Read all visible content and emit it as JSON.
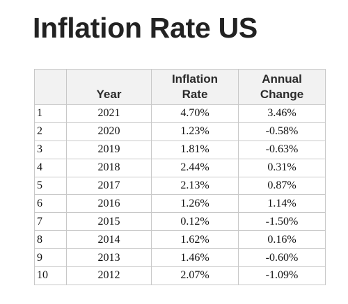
{
  "title": "Inflation Rate US",
  "table": {
    "headers": {
      "index": "",
      "year": "Year",
      "rate_line1": "Inflation",
      "rate_line2": "Rate",
      "change_line1": "Annual",
      "change_line2": "Change"
    },
    "rows": [
      {
        "index": "1",
        "year": "2021",
        "rate": "4.70%",
        "change": "3.46%"
      },
      {
        "index": "2",
        "year": "2020",
        "rate": "1.23%",
        "change": "-0.58%"
      },
      {
        "index": "3",
        "year": "2019",
        "rate": "1.81%",
        "change": "-0.63%"
      },
      {
        "index": "4",
        "year": "2018",
        "rate": "2.44%",
        "change": "0.31%"
      },
      {
        "index": "5",
        "year": "2017",
        "rate": "2.13%",
        "change": "0.87%"
      },
      {
        "index": "6",
        "year": "2016",
        "rate": "1.26%",
        "change": "1.14%"
      },
      {
        "index": "7",
        "year": "2015",
        "rate": "0.12%",
        "change": "-1.50%"
      },
      {
        "index": "8",
        "year": "2014",
        "rate": "1.62%",
        "change": "0.16%"
      },
      {
        "index": "9",
        "year": "2013",
        "rate": "1.46%",
        "change": "-0.60%"
      },
      {
        "index": "10",
        "year": "2012",
        "rate": "2.07%",
        "change": "-1.09%"
      }
    ]
  }
}
